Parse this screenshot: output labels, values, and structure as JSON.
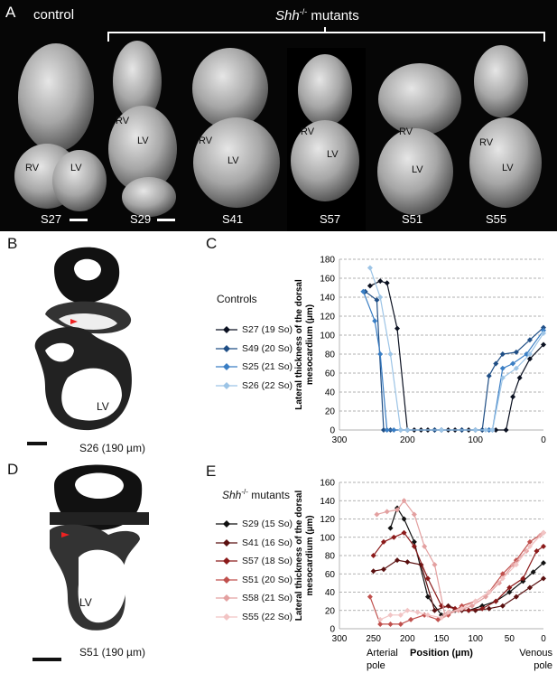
{
  "panelA": {
    "letter": "A",
    "control_label": "control",
    "mutants_italic": "Shh",
    "mutants_sup": "-/-",
    "mutants_rest": " mutants",
    "specimens": [
      {
        "id": "S27",
        "labels": [
          "RV",
          "LV"
        ]
      },
      {
        "id": "S29",
        "labels": [
          "RV",
          "LV"
        ]
      },
      {
        "id": "S41",
        "labels": [
          "RV",
          "LV"
        ]
      },
      {
        "id": "S57",
        "labels": [
          "RV",
          "LV"
        ]
      },
      {
        "id": "S51",
        "labels": [
          "RV",
          "LV"
        ]
      },
      {
        "id": "S55",
        "labels": [
          "RV",
          "LV"
        ]
      }
    ]
  },
  "panelB": {
    "letter": "B",
    "lv": "LV",
    "caption": "S26 (190 µm)"
  },
  "panelD": {
    "letter": "D",
    "lv": "LV",
    "caption": "S51 (190 µm)"
  },
  "panelC": {
    "letter": "C",
    "legend_title": "Controls"
  },
  "panelE": {
    "letter": "E",
    "legend_title_italic": "Shh",
    "legend_title_sup": "-/-",
    "legend_title_rest": " mutants"
  },
  "chart_data": [
    {
      "type": "line",
      "panel": "C",
      "ylabel": "Lateral thickness of the dorsal mesocardium (µm)",
      "xlabel": "",
      "xlim": [
        300,
        0
      ],
      "ylim": [
        0,
        180
      ],
      "xticks": [
        300,
        200,
        100,
        0
      ],
      "yticks": [
        0,
        20,
        40,
        60,
        80,
        100,
        120,
        140,
        160,
        180
      ],
      "grid": "horizontal dashed",
      "series": [
        {
          "name": "S27 (19 So)",
          "color": "#0a1020",
          "marker": "diamond",
          "x": [
            255,
            240,
            230,
            215,
            200,
            190,
            180,
            170,
            160,
            150,
            140,
            130,
            120,
            110,
            100,
            90,
            80,
            70,
            55,
            45,
            35,
            20,
            0
          ],
          "y": [
            152,
            157,
            155,
            107,
            0,
            0,
            0,
            0,
            0,
            0,
            0,
            0,
            0,
            0,
            0,
            0,
            0,
            0,
            0,
            35,
            55,
            75,
            90
          ]
        },
        {
          "name": "S49 (20 So)",
          "color": "#1f4e85",
          "marker": "diamond",
          "x": [
            262,
            245,
            235,
            225,
            210,
            200,
            160,
            120,
            90,
            80,
            70,
            60,
            40,
            20,
            0
          ],
          "y": [
            146,
            137,
            0,
            0,
            0,
            0,
            0,
            0,
            0,
            57,
            70,
            80,
            82,
            95,
            108
          ]
        },
        {
          "name": "S25 (21 So)",
          "color": "#3a7ec4",
          "marker": "diamond",
          "x": [
            265,
            248,
            240,
            230,
            220,
            200,
            150,
            100,
            80,
            75,
            60,
            45,
            25,
            0
          ],
          "y": [
            146,
            115,
            80,
            0,
            0,
            0,
            0,
            0,
            0,
            0,
            65,
            70,
            80,
            105
          ]
        },
        {
          "name": "S26 (22 So)",
          "color": "#9cc4e6",
          "marker": "diamond",
          "x": [
            255,
            240,
            225,
            210,
            200,
            150,
            100,
            85,
            75,
            60,
            40,
            20,
            0
          ],
          "y": [
            171,
            140,
            80,
            0,
            0,
            0,
            0,
            0,
            0,
            55,
            65,
            80,
            102
          ]
        }
      ]
    },
    {
      "type": "line",
      "panel": "E",
      "ylabel": "Lateral thickness of the dorsal mesocardium (µm)",
      "xlabel": "Position (µm)",
      "x_left_label": "Arterial pole",
      "x_right_label": "Venous pole",
      "xlim": [
        300,
        0
      ],
      "ylim": [
        0,
        160
      ],
      "xticks": [
        300,
        250,
        200,
        150,
        100,
        50,
        0
      ],
      "yticks": [
        0,
        20,
        40,
        60,
        80,
        100,
        120,
        140,
        160
      ],
      "grid": "horizontal dashed",
      "series": [
        {
          "name": "S29 (15 So)",
          "color": "#111111",
          "marker": "diamond",
          "x": [
            225,
            215,
            205,
            190,
            170,
            150,
            130,
            110,
            90,
            70,
            50,
            30,
            15,
            0
          ],
          "y": [
            110,
            132,
            120,
            95,
            35,
            15,
            20,
            20,
            25,
            30,
            40,
            52,
            62,
            72
          ]
        },
        {
          "name": "S41 (16 So)",
          "color": "#5a1010",
          "marker": "diamond",
          "x": [
            250,
            235,
            215,
            200,
            180,
            160,
            140,
            120,
            100,
            80,
            60,
            40,
            20,
            0
          ],
          "y": [
            63,
            65,
            75,
            73,
            70,
            20,
            25,
            20,
            20,
            22,
            25,
            35,
            45,
            55
          ]
        },
        {
          "name": "S57 (18 So)",
          "color": "#8b1a1a",
          "marker": "diamond",
          "x": [
            250,
            235,
            220,
            205,
            190,
            170,
            150,
            130,
            110,
            90,
            70,
            50,
            30,
            10,
            0
          ],
          "y": [
            80,
            95,
            100,
            105,
            90,
            55,
            25,
            22,
            20,
            22,
            30,
            45,
            55,
            85,
            90
          ]
        },
        {
          "name": "S51 (20 So)",
          "color": "#c0504d",
          "marker": "diamond",
          "x": [
            255,
            240,
            225,
            210,
            195,
            175,
            155,
            140,
            120,
            100,
            80,
            60,
            40,
            20,
            0
          ],
          "y": [
            35,
            5,
            5,
            5,
            10,
            15,
            10,
            15,
            25,
            30,
            40,
            60,
            75,
            95,
            105
          ]
        },
        {
          "name": "S58 (21 So)",
          "color": "#e3a0a0",
          "marker": "diamond",
          "x": [
            245,
            230,
            215,
            205,
            190,
            175,
            160,
            145,
            125,
            105,
            85,
            65,
            45,
            25,
            5
          ],
          "y": [
            125,
            128,
            130,
            140,
            125,
            90,
            70,
            15,
            20,
            25,
            35,
            50,
            70,
            85,
            102
          ]
        },
        {
          "name": "S55 (22 So)",
          "color": "#f2c4c4",
          "marker": "diamond",
          "x": [
            240,
            225,
            210,
            200,
            185,
            170,
            150,
            140,
            120,
            100,
            80,
            60,
            40,
            20,
            0
          ],
          "y": [
            10,
            15,
            15,
            20,
            18,
            15,
            12,
            18,
            22,
            30,
            40,
            55,
            70,
            90,
            105
          ]
        }
      ]
    }
  ]
}
